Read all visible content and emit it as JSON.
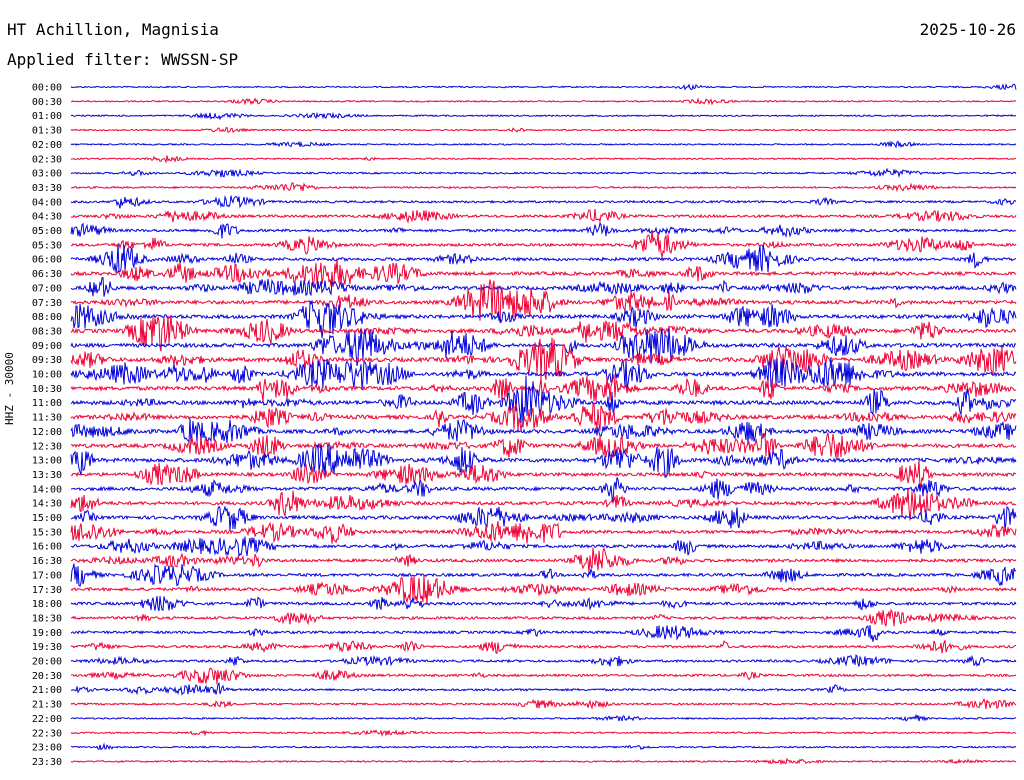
{
  "header": {
    "station": "HT Achillion, Magnisia",
    "date": "2025-10-26",
    "filter": "Applied filter: WWSSN-SP"
  },
  "chart_data": {
    "type": "line",
    "ylabel": "HHZ - 30000",
    "row_labels": [
      "00:00",
      "00:30",
      "01:00",
      "01:30",
      "02:00",
      "02:30",
      "03:00",
      "03:30",
      "04:00",
      "04:30",
      "05:00",
      "05:30",
      "06:00",
      "06:30",
      "07:00",
      "07:30",
      "08:00",
      "08:30",
      "09:00",
      "09:30",
      "10:00",
      "10:30",
      "11:00",
      "11:30",
      "12:00",
      "12:30",
      "13:00",
      "13:30",
      "14:00",
      "14:30",
      "15:00",
      "15:30",
      "16:00",
      "16:30",
      "17:00",
      "17:30",
      "18:00",
      "18:30",
      "19:00",
      "19:30",
      "20:00",
      "20:30",
      "21:00",
      "21:30",
      "22:00",
      "22:30",
      "23:00",
      "23:30"
    ],
    "colors": {
      "even_rows": "#0000dd",
      "odd_rows": "#ee0033"
    },
    "activity_level": [
      0.05,
      0.05,
      0.06,
      0.05,
      0.05,
      0.07,
      0.12,
      0.15,
      0.3,
      0.45,
      0.45,
      0.5,
      0.6,
      0.7,
      0.75,
      0.8,
      0.8,
      0.8,
      0.85,
      0.9,
      0.9,
      0.85,
      0.9,
      0.85,
      0.8,
      0.8,
      0.85,
      0.7,
      0.7,
      0.7,
      0.7,
      0.65,
      0.6,
      0.6,
      0.55,
      0.55,
      0.5,
      0.45,
      0.4,
      0.4,
      0.35,
      0.35,
      0.3,
      0.2,
      0.1,
      0.08,
      0.08,
      0.1
    ]
  }
}
